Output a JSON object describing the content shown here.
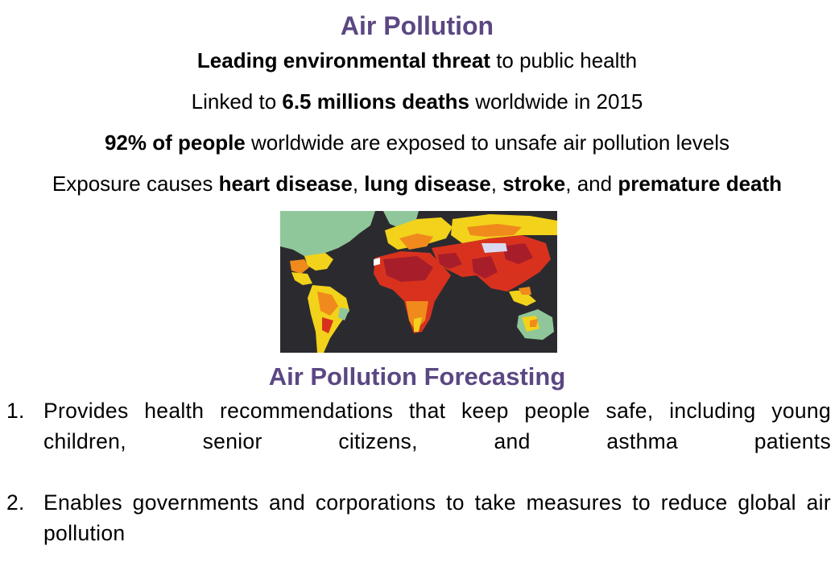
{
  "title": "Air Pollution",
  "lines": [
    {
      "parts": [
        {
          "t": "Leading environmental threat",
          "b": true
        },
        {
          "t": " to public health",
          "b": false
        }
      ]
    },
    {
      "parts": [
        {
          "t": "Linked to ",
          "b": false
        },
        {
          "t": "6.5 millions deaths",
          "b": true
        },
        {
          "t": " worldwide in 2015",
          "b": false
        }
      ]
    },
    {
      "parts": [
        {
          "t": "92% of people",
          "b": true
        },
        {
          "t": " worldwide are exposed to unsafe air pollution levels",
          "b": false
        }
      ]
    },
    {
      "parts": [
        {
          "t": "Exposure causes ",
          "b": false
        },
        {
          "t": "heart disease",
          "b": true
        },
        {
          "t": ", ",
          "b": false
        },
        {
          "t": "lung disease",
          "b": true
        },
        {
          "t": ", ",
          "b": false
        },
        {
          "t": "stroke",
          "b": true
        },
        {
          "t": ", and ",
          "b": false
        },
        {
          "t": "premature death",
          "b": true
        }
      ]
    }
  ],
  "map": {
    "colors": {
      "ocean": "#2b2b2f",
      "low": "#8fc79a",
      "yellow": "#f2d21b",
      "orange": "#f08a1c",
      "red": "#d8321e",
      "darkred": "#a81d2a"
    }
  },
  "subtitle": "Air Pollution Forecasting",
  "items": [
    {
      "num": "1.",
      "text": "Provides health recommendations that keep people safe, including young children, senior citizens, and asthma patients"
    },
    {
      "num": "2.",
      "text": "Enables governments and corporations to take measures to reduce global air pollution"
    }
  ]
}
